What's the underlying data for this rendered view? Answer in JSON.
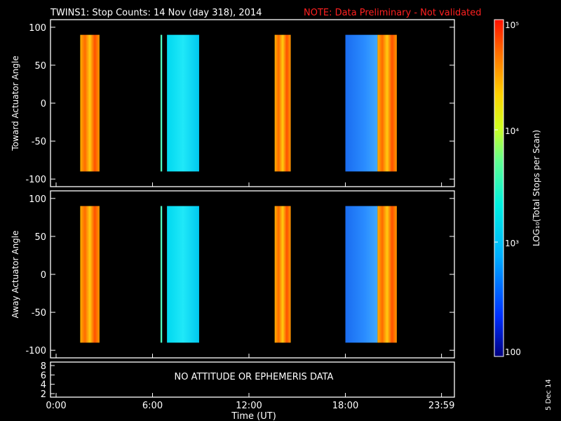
{
  "header": {
    "title": "TWINS1: Stop Counts: 14 Nov (day 318), 2014",
    "note": "NOTE: Data Preliminary - Not validated"
  },
  "colorbar": {
    "label": "LOG₁₀(Total Stops per Scan)",
    "ticks": [
      "10⁵",
      "10⁴",
      "10³",
      "100"
    ],
    "colors": [
      "#000080",
      "#0030ff",
      "#00b0ff",
      "#00f0e0",
      "#60ff90",
      "#d0ff20",
      "#ffd000",
      "#ff7000",
      "#ff1000"
    ]
  },
  "footer": {
    "date_stamp": "5 Dec 14",
    "ephemeris_message": "NO ATTITUDE OR EPHEMERIS DATA"
  },
  "chart_data": [
    {
      "type": "heatmap",
      "ylabel": "Toward Actuator Angle",
      "ylim": [
        -110,
        110
      ],
      "yticks": [
        "100",
        "50",
        "0",
        "-50",
        "-100"
      ],
      "xlim": [
        0,
        24
      ],
      "blocks": [
        {
          "t0": 1.5,
          "t1": 2.7,
          "level": "orange"
        },
        {
          "t0": 6.5,
          "t1": 6.6,
          "level": "green"
        },
        {
          "t0": 6.9,
          "t1": 8.9,
          "level": "cyan"
        },
        {
          "t0": 13.6,
          "t1": 14.6,
          "level": "orange"
        },
        {
          "t0": 18.0,
          "t1": 20.0,
          "level": "blue"
        },
        {
          "t0": 20.0,
          "t1": 21.2,
          "level": "orange"
        }
      ]
    },
    {
      "type": "heatmap",
      "ylabel": "Away Actuator Angle",
      "ylim": [
        -110,
        110
      ],
      "yticks": [
        "100",
        "50",
        "0",
        "-50",
        "-100"
      ],
      "xlim": [
        0,
        24
      ],
      "blocks": [
        {
          "t0": 1.5,
          "t1": 2.7,
          "level": "orange"
        },
        {
          "t0": 6.5,
          "t1": 6.6,
          "level": "green"
        },
        {
          "t0": 6.9,
          "t1": 8.9,
          "level": "cyan"
        },
        {
          "t0": 13.6,
          "t1": 14.6,
          "level": "orange"
        },
        {
          "t0": 18.0,
          "t1": 20.0,
          "level": "blue"
        },
        {
          "t0": 20.0,
          "t1": 21.2,
          "level": "orange"
        }
      ]
    },
    {
      "type": "line",
      "yticks": [
        "8",
        "6",
        "4",
        "2"
      ],
      "xlabel": "Time (UT)",
      "xticks": [
        "0:00",
        "6:00",
        "12:00",
        "18:00",
        "23:59"
      ]
    }
  ]
}
